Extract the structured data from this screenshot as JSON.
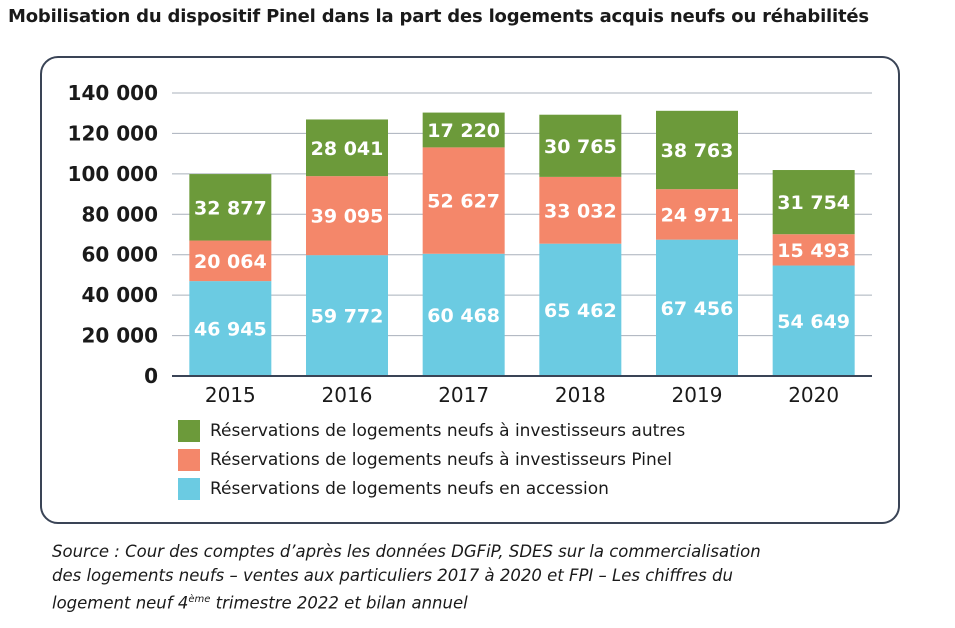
{
  "title": "Mobilisation du dispositif Pinel dans la part des logements acquis neufs ou réhabilités",
  "chart_data": {
    "type": "bar",
    "stacked": true,
    "categories": [
      "2015",
      "2016",
      "2017",
      "2018",
      "2019",
      "2020"
    ],
    "ylim": [
      0,
      140000
    ],
    "yticks": [
      "0",
      "20 000",
      "40 000",
      "60 000",
      "80 000",
      "100 000",
      "120 000",
      "140 000"
    ],
    "ytick_values": [
      0,
      20000,
      40000,
      60000,
      80000,
      100000,
      120000,
      140000
    ],
    "grid": true,
    "series": [
      {
        "name": "Réservations de logements neufs en accession",
        "color": "#6bcbe2",
        "values": [
          46945,
          59772,
          60468,
          65462,
          67456,
          54649
        ],
        "labels": [
          "46 945",
          "59 772",
          "60 468",
          "65 462",
          "67 456",
          "54 649"
        ]
      },
      {
        "name": "Réservations de logements neufs à investisseurs Pinel",
        "color": "#f4876a",
        "values": [
          20064,
          39095,
          52627,
          33032,
          24971,
          15493
        ],
        "labels": [
          "20 064",
          "39 095",
          "52 627",
          "33 032",
          "24 971",
          "15 493"
        ]
      },
      {
        "name": "Réservations de logements neufs à investisseurs autres",
        "color": "#6c9a3a",
        "values": [
          32877,
          28041,
          17220,
          30765,
          38763,
          31754
        ],
        "labels": [
          "32 877",
          "28 041",
          "17 220",
          "30 765",
          "38 763",
          "31 754"
        ]
      }
    ],
    "legend_order": [
      2,
      1,
      0
    ]
  },
  "source": {
    "line1": "Source : Cour des comptes d’après les données DGFiP, SDES sur la commercialisation",
    "line2": "des logements neufs – ventes aux particuliers 2017 à 2020 et FPI – Les chiffres du",
    "line3_start": "logement neuf 4",
    "line3_sup": "ème",
    "line3_end": " trimestre 2022 et bilan annuel"
  }
}
